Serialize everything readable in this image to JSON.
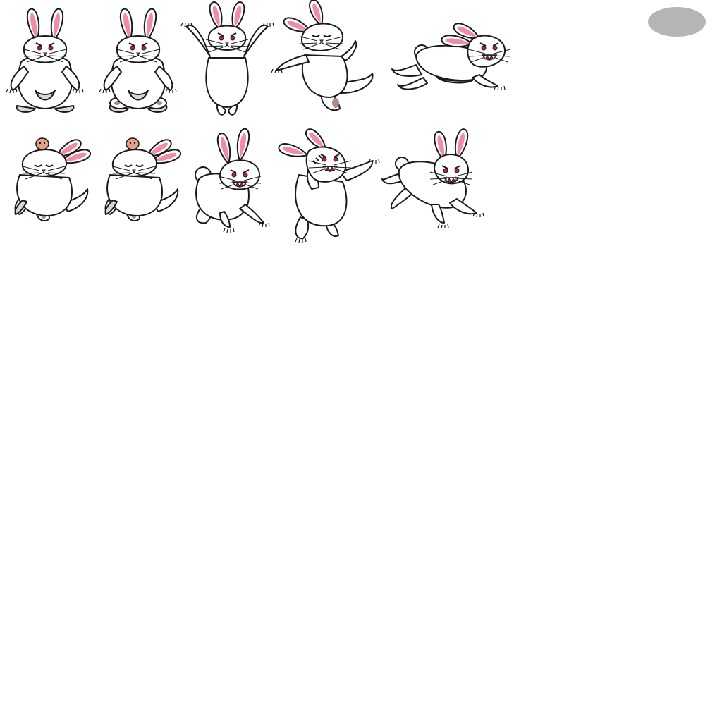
{
  "sheet": {
    "background": "#ffffff",
    "fur": "#ffffff",
    "fur_shade": "#d9d6d6",
    "outline": "#1a1a1a",
    "inner_ear": "#f08ca4",
    "eye": "#c0203a",
    "paw_pad": "#b08a84",
    "mouth": "#c0203a",
    "teeth": "#ffffff",
    "shadow": "#b5b5b5",
    "bird": "#e8a08a"
  },
  "frames": [
    {
      "name": "idle-1",
      "pose": "stand",
      "expr": "angry"
    },
    {
      "name": "idle-2",
      "pose": "sit",
      "expr": "angry"
    },
    {
      "name": "jump-arms-up",
      "pose": "armsup",
      "expr": "angry"
    },
    {
      "name": "hit-recoil",
      "pose": "recoil",
      "expr": "hurt"
    },
    {
      "name": "dash-right",
      "pose": "dash",
      "expr": "roar",
      "dir": "right"
    },
    {
      "name": "dazed-1",
      "pose": "dazed",
      "expr": "dazed",
      "bird": true
    },
    {
      "name": "dazed-2",
      "pose": "dazed",
      "expr": "dazed",
      "bird": true
    },
    {
      "name": "crouch-snarl",
      "pose": "crouch",
      "expr": "snarl"
    },
    {
      "name": "roar-claw",
      "pose": "roar",
      "expr": "roar"
    },
    {
      "name": "pounce-right",
      "pose": "pounce",
      "expr": "snarl",
      "dir": "right"
    }
  ]
}
